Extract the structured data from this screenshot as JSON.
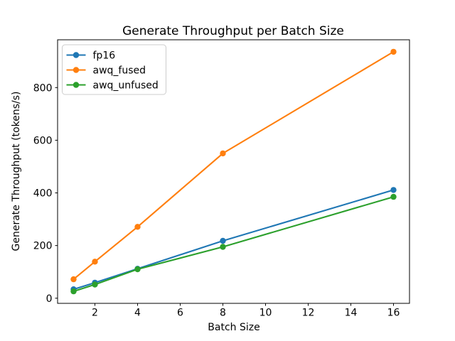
{
  "chart_data": {
    "type": "line",
    "title": "Generate Throughput per Batch Size",
    "xlabel": "Batch Size",
    "ylabel": "Generate Throughput (tokens/s)",
    "x": [
      1,
      2,
      4,
      8,
      16
    ],
    "series": [
      {
        "name": "fp16",
        "color": "#1f77b4",
        "values": [
          34,
          59,
          112,
          218,
          411
        ]
      },
      {
        "name": "awq_fused",
        "color": "#ff7f0e",
        "values": [
          72,
          139,
          271,
          550,
          936
        ]
      },
      {
        "name": "awq_unfused",
        "color": "#2ca02c",
        "values": [
          26,
          52,
          110,
          195,
          385
        ]
      }
    ],
    "xticks": [
      2,
      4,
      6,
      8,
      10,
      12,
      14,
      16
    ],
    "yticks": [
      0,
      200,
      400,
      600,
      800
    ],
    "xlim": [
      0.25,
      16.75
    ],
    "ylim": [
      -19.5,
      981.5
    ],
    "grid": false,
    "marker": "circle",
    "legend_position": "upper left",
    "background_color": "#ffffff",
    "axis_color": "#000000",
    "legend_border_color": "#cccccc"
  }
}
